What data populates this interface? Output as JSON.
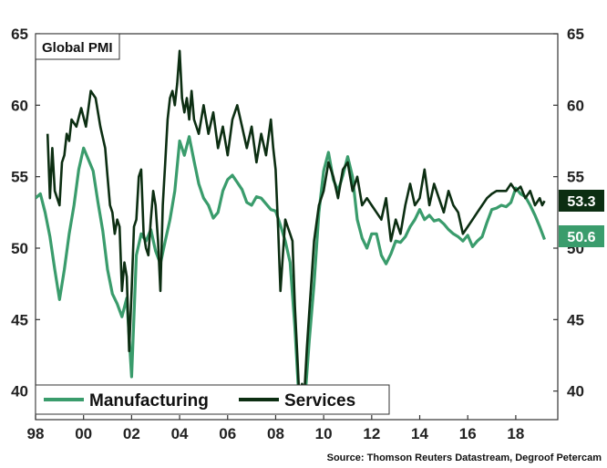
{
  "source": "Source: Thomson Reuters Datastream, Degroof Petercam",
  "colors": {
    "manufacturing": "#3a9c6c",
    "services": "#0c2e12"
  },
  "chart_data": {
    "type": "line",
    "title": "Global PMI",
    "xlabel": "",
    "ylabel": "",
    "xlim": [
      1998.0,
      2019.75
    ],
    "ylim": [
      38,
      65
    ],
    "yticks": [
      40,
      45,
      50,
      55,
      60,
      65
    ],
    "xticks": [
      1998,
      2000,
      2002,
      2004,
      2006,
      2008,
      2010,
      2012,
      2014,
      2016,
      2018
    ],
    "xtick_labels": [
      "98",
      "00",
      "02",
      "04",
      "06",
      "08",
      "10",
      "12",
      "14",
      "16",
      "18"
    ],
    "grid": false,
    "legend": "bottom-left",
    "end_labels": {
      "services": "53.3",
      "manufacturing": "50.6"
    },
    "series": [
      {
        "name": "Manufacturing",
        "x": [
          1998.0,
          1998.2,
          1998.4,
          1998.6,
          1998.8,
          1999.0,
          1999.2,
          1999.4,
          1999.6,
          1999.8,
          2000.0,
          2000.2,
          2000.4,
          2000.6,
          2000.8,
          2001.0,
          2001.2,
          2001.4,
          2001.6,
          2001.8,
          2002.0,
          2002.2,
          2002.4,
          2002.6,
          2002.8,
          2003.0,
          2003.2,
          2003.4,
          2003.6,
          2003.8,
          2004.0,
          2004.2,
          2004.4,
          2004.6,
          2004.8,
          2005.0,
          2005.2,
          2005.4,
          2005.6,
          2005.8,
          2006.0,
          2006.2,
          2006.4,
          2006.6,
          2006.8,
          2007.0,
          2007.2,
          2007.4,
          2007.6,
          2007.8,
          2008.0,
          2008.2,
          2008.4,
          2008.6,
          2008.8,
          2009.0,
          2009.2,
          2009.4,
          2009.6,
          2009.8,
          2010.0,
          2010.2,
          2010.4,
          2010.6,
          2010.8,
          2011.0,
          2011.2,
          2011.4,
          2011.6,
          2011.8,
          2012.0,
          2012.2,
          2012.4,
          2012.6,
          2012.8,
          2013.0,
          2013.2,
          2013.4,
          2013.6,
          2013.8,
          2014.0,
          2014.2,
          2014.4,
          2014.6,
          2014.8,
          2015.0,
          2015.2,
          2015.4,
          2015.6,
          2015.8,
          2016.0,
          2016.2,
          2016.4,
          2016.6,
          2016.8,
          2017.0,
          2017.2,
          2017.4,
          2017.6,
          2017.8,
          2018.0,
          2018.2,
          2018.4,
          2018.6,
          2018.8,
          2019.0,
          2019.2
        ],
        "values": [
          53.5,
          53.8,
          52.5,
          50.8,
          48.5,
          46.4,
          48.5,
          51.0,
          53.0,
          55.5,
          57.0,
          56.2,
          55.4,
          53.2,
          51.2,
          48.5,
          46.8,
          46.1,
          45.2,
          46.5,
          41.0,
          49.5,
          51.0,
          50.5,
          51.3,
          49.8,
          48.9,
          50.5,
          52.0,
          54.0,
          57.5,
          56.5,
          57.8,
          56.1,
          54.5,
          53.5,
          53.0,
          52.1,
          52.5,
          54.0,
          54.8,
          55.1,
          54.6,
          54.1,
          53.2,
          53.0,
          53.6,
          53.5,
          53.1,
          52.7,
          52.6,
          51.6,
          50.5,
          49.0,
          44.5,
          38.5,
          39.0,
          43.5,
          47.5,
          52.5,
          55.4,
          56.7,
          54.8,
          54.0,
          55.1,
          56.4,
          55.0,
          52.0,
          50.7,
          50.0,
          51.0,
          51.0,
          49.5,
          48.9,
          49.6,
          50.5,
          50.4,
          50.8,
          51.5,
          52.0,
          52.7,
          52.0,
          52.3,
          51.9,
          52.0,
          51.7,
          51.3,
          51.0,
          50.8,
          50.5,
          50.9,
          50.1,
          50.5,
          50.8,
          51.8,
          52.7,
          52.8,
          53.0,
          52.9,
          53.2,
          54.2,
          53.8,
          53.6,
          53.0,
          52.3,
          51.5,
          50.6
        ]
      },
      {
        "name": "Services",
        "x": [
          1998.5,
          1998.6,
          1998.7,
          1998.8,
          1998.9,
          1999.0,
          1999.1,
          1999.2,
          1999.3,
          1999.4,
          1999.5,
          1999.7,
          1999.9,
          2000.1,
          2000.3,
          2000.5,
          2000.7,
          2000.9,
          2001.0,
          2001.1,
          2001.2,
          2001.3,
          2001.4,
          2001.5,
          2001.6,
          2001.7,
          2001.8,
          2001.9,
          2002.0,
          2002.1,
          2002.2,
          2002.3,
          2002.4,
          2002.5,
          2002.6,
          2002.7,
          2002.8,
          2002.9,
          2003.0,
          2003.1,
          2003.2,
          2003.3,
          2003.4,
          2003.5,
          2003.6,
          2003.7,
          2003.8,
          2003.9,
          2004.0,
          2004.1,
          2004.2,
          2004.3,
          2004.4,
          2004.5,
          2004.6,
          2004.8,
          2005.0,
          2005.2,
          2005.4,
          2005.6,
          2005.8,
          2006.0,
          2006.2,
          2006.4,
          2006.6,
          2006.8,
          2007.0,
          2007.2,
          2007.4,
          2007.6,
          2007.8,
          2007.9,
          2008.0,
          2008.1,
          2008.2,
          2008.4,
          2008.5,
          2008.6,
          2008.7,
          2008.8,
          2008.9,
          2009.0,
          2009.1,
          2009.2,
          2009.3,
          2009.4,
          2009.5,
          2009.6,
          2009.8,
          2010.0,
          2010.2,
          2010.4,
          2010.6,
          2010.8,
          2011.0,
          2011.2,
          2011.4,
          2011.6,
          2011.8,
          2012.0,
          2012.2,
          2012.4,
          2012.6,
          2012.8,
          2013.0,
          2013.2,
          2013.4,
          2013.6,
          2013.8,
          2014.0,
          2014.2,
          2014.4,
          2014.6,
          2014.8,
          2015.0,
          2015.2,
          2015.4,
          2015.6,
          2015.8,
          2016.0,
          2016.2,
          2016.4,
          2016.6,
          2016.8,
          2017.0,
          2017.2,
          2017.4,
          2017.6,
          2017.8,
          2018.0,
          2018.2,
          2018.4,
          2018.6,
          2018.8,
          2019.0,
          2019.1,
          2019.2
        ],
        "values": [
          58.0,
          53.5,
          57.0,
          54.0,
          53.5,
          53.0,
          56.0,
          56.5,
          58.0,
          57.5,
          59.0,
          58.5,
          59.8,
          58.5,
          61.0,
          60.5,
          58.5,
          57.0,
          55.0,
          53.0,
          52.5,
          51.0,
          52.0,
          51.5,
          47.0,
          49.0,
          48.0,
          42.8,
          47.0,
          51.5,
          52.0,
          55.0,
          55.5,
          51.0,
          50.0,
          49.5,
          52.0,
          54.0,
          53.0,
          50.5,
          47.0,
          53.0,
          56.0,
          59.0,
          60.5,
          61.0,
          60.0,
          61.5,
          63.8,
          60.5,
          59.5,
          60.5,
          59.0,
          61.0,
          59.0,
          58.0,
          60.0,
          58.0,
          59.5,
          57.0,
          58.5,
          56.5,
          59.0,
          60.0,
          58.5,
          57.0,
          58.5,
          56.0,
          58.0,
          56.5,
          59.0,
          57.0,
          55.5,
          51.5,
          47.0,
          52.0,
          51.5,
          51.0,
          50.5,
          46.0,
          42.5,
          39.0,
          40.5,
          40.0,
          43.0,
          45.5,
          48.0,
          50.5,
          53.0,
          54.0,
          56.0,
          55.0,
          53.5,
          55.5,
          56.0,
          54.0,
          55.0,
          53.0,
          53.5,
          53.0,
          52.5,
          52.0,
          53.5,
          50.5,
          52.0,
          51.0,
          53.0,
          54.5,
          53.0,
          53.5,
          55.5,
          53.0,
          54.5,
          53.5,
          52.5,
          54.0,
          53.0,
          52.5,
          51.0,
          51.5,
          52.0,
          52.5,
          53.0,
          53.5,
          53.8,
          54.0,
          54.0,
          54.0,
          54.5,
          54.0,
          54.3,
          53.5,
          54.0,
          53.0,
          53.5,
          53.0,
          53.3
        ]
      }
    ]
  }
}
